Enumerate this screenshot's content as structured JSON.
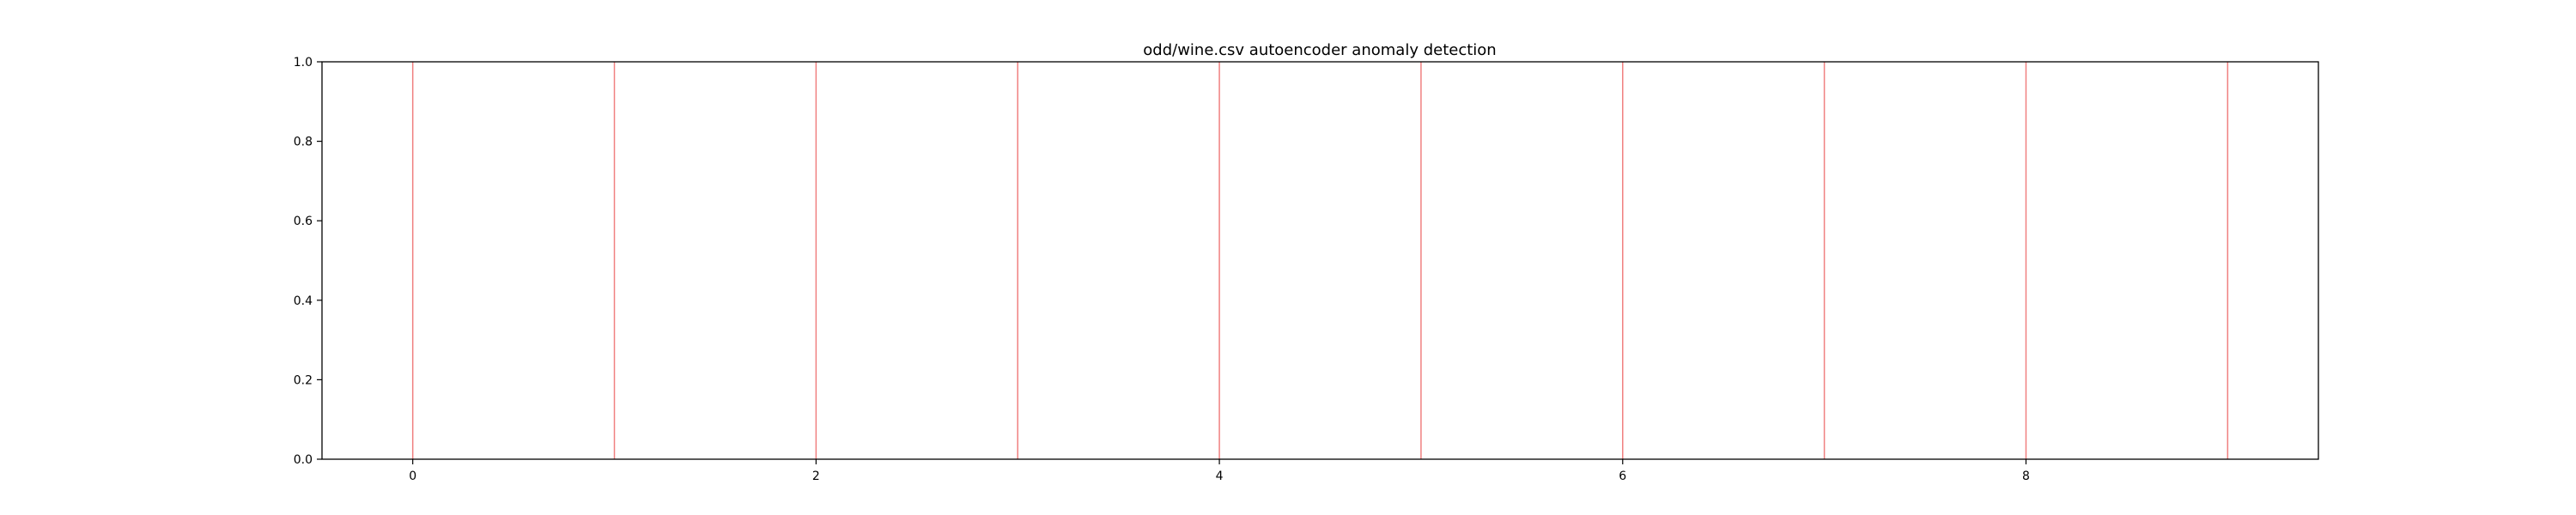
{
  "chart_data": {
    "type": "line",
    "title": "odd/wine.csv autoencoder anomaly detection",
    "xlabel": "",
    "ylabel": "",
    "xlim": [
      -0.45,
      9.45
    ],
    "ylim": [
      0.0,
      1.0
    ],
    "x_ticks": [
      0,
      2,
      4,
      6,
      8
    ],
    "x_tick_labels": [
      "0",
      "2",
      "4",
      "6",
      "8"
    ],
    "y_ticks": [
      0.0,
      0.2,
      0.4,
      0.6,
      0.8,
      1.0
    ],
    "y_tick_labels": [
      "0.0",
      "0.2",
      "0.4",
      "0.6",
      "0.8",
      "1.0"
    ],
    "grid": false,
    "legend": "none",
    "anomaly_lines": {
      "x": [
        0,
        1,
        2,
        3,
        4,
        5,
        6,
        7,
        8,
        9
      ],
      "color": "#f08080"
    }
  }
}
